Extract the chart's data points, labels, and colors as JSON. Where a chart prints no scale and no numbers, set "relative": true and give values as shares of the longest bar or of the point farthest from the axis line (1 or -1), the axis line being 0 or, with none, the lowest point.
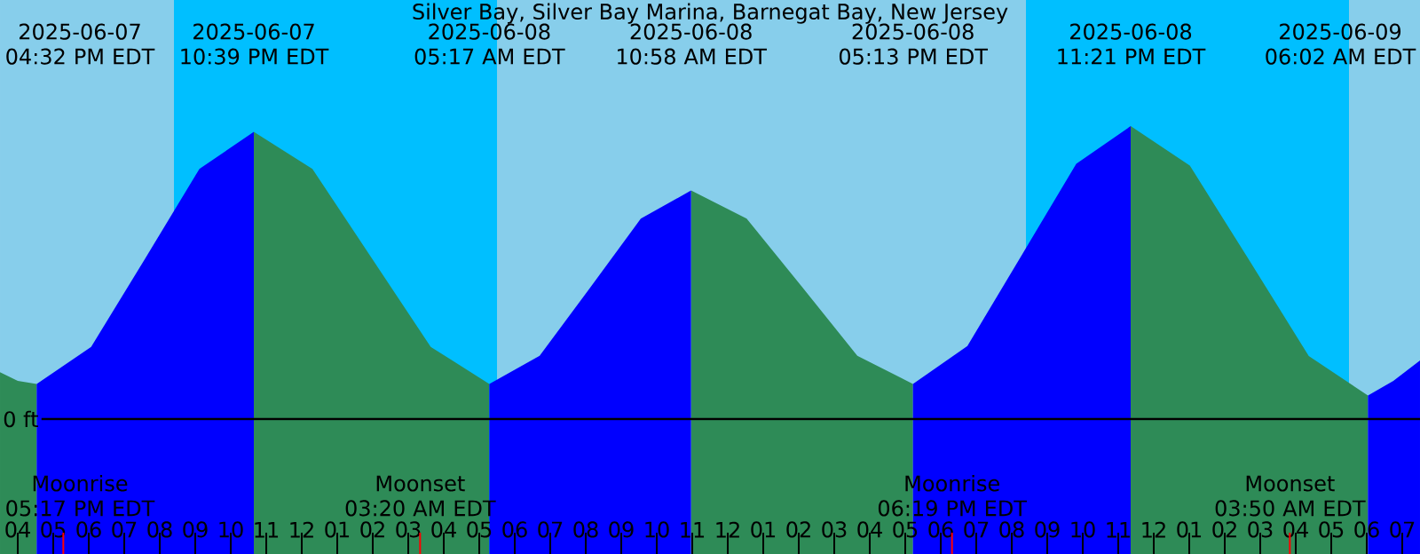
{
  "chart_data": {
    "type": "area",
    "relative": true,
    "title": "Silver Bay, Silver Bay Marina, Barnegat Bay, New Jersey",
    "x": [
      "2025-06-07T15:30",
      "2025-06-07T16:00",
      "2025-06-07T16:32",
      "2025-06-07T18:04",
      "2025-06-07T19:36",
      "2025-06-07T21:07",
      "2025-06-07T22:39",
      "2025-06-08T00:18",
      "2025-06-08T01:58",
      "2025-06-08T03:38",
      "2025-06-08T05:17",
      "2025-06-08T06:42",
      "2025-06-08T08:08",
      "2025-06-08T09:33",
      "2025-06-08T10:58",
      "2025-06-08T12:32",
      "2025-06-08T14:06",
      "2025-06-08T15:39",
      "2025-06-08T17:13",
      "2025-06-08T18:45",
      "2025-06-08T20:17",
      "2025-06-08T21:49",
      "2025-06-08T23:21",
      "2025-06-09T01:01",
      "2025-06-09T02:42",
      "2025-06-09T04:22",
      "2025-06-09T06:02",
      "2025-06-09T06:45",
      "2025-06-09T07:30"
    ],
    "series": [
      {
        "color": "#2e8b57",
        "values": [
          0.16,
          0.13,
          0.12,
          null,
          null,
          null,
          0.98,
          0.854,
          0.55,
          0.246,
          0.12,
          null,
          null,
          null,
          0.78,
          0.684,
          0.45,
          0.216,
          0.12,
          null,
          null,
          null,
          1.0,
          0.865,
          0.54,
          0.215,
          0.08,
          null,
          null
        ]
      },
      {
        "color": "#0000ff",
        "values": [
          null,
          null,
          0.12,
          0.246,
          0.55,
          0.854,
          0.98,
          null,
          null,
          null,
          0.12,
          0.216,
          0.45,
          0.684,
          0.78,
          null,
          null,
          null,
          0.12,
          0.249,
          0.56,
          0.871,
          1.0,
          null,
          null,
          null,
          0.08,
          0.13,
          0.2
        ]
      }
    ],
    "xlim": [
      "2025-06-07T15:30",
      "2025-06-09T07:30"
    ],
    "xticks": [
      {
        "value": "2025-06-07T16:00",
        "label": "04"
      },
      {
        "value": "2025-06-07T17:00",
        "label": "05"
      },
      {
        "value": "2025-06-07T18:00",
        "label": "06"
      },
      {
        "value": "2025-06-07T19:00",
        "label": "07"
      },
      {
        "value": "2025-06-07T20:00",
        "label": "08"
      },
      {
        "value": "2025-06-07T21:00",
        "label": "09"
      },
      {
        "value": "2025-06-07T22:00",
        "label": "10"
      },
      {
        "value": "2025-06-07T23:00",
        "label": "11"
      },
      {
        "value": "2025-06-08T00:00",
        "label": "12"
      },
      {
        "value": "2025-06-08T01:00",
        "label": "01"
      },
      {
        "value": "2025-06-08T02:00",
        "label": "02"
      },
      {
        "value": "2025-06-08T03:00",
        "label": "03"
      },
      {
        "value": "2025-06-08T04:00",
        "label": "04"
      },
      {
        "value": "2025-06-08T05:00",
        "label": "05"
      },
      {
        "value": "2025-06-08T06:00",
        "label": "06"
      },
      {
        "value": "2025-06-08T07:00",
        "label": "07"
      },
      {
        "value": "2025-06-08T08:00",
        "label": "08"
      },
      {
        "value": "2025-06-08T09:00",
        "label": "09"
      },
      {
        "value": "2025-06-08T10:00",
        "label": "10"
      },
      {
        "value": "2025-06-08T11:00",
        "label": "11"
      },
      {
        "value": "2025-06-08T12:00",
        "label": "12"
      },
      {
        "value": "2025-06-08T13:00",
        "label": "01"
      },
      {
        "value": "2025-06-08T14:00",
        "label": "02"
      },
      {
        "value": "2025-06-08T15:00",
        "label": "03"
      },
      {
        "value": "2025-06-08T16:00",
        "label": "04"
      },
      {
        "value": "2025-06-08T17:00",
        "label": "05"
      },
      {
        "value": "2025-06-08T18:00",
        "label": "06"
      },
      {
        "value": "2025-06-08T19:00",
        "label": "07"
      },
      {
        "value": "2025-06-08T20:00",
        "label": "08"
      },
      {
        "value": "2025-06-08T21:00",
        "label": "09"
      },
      {
        "value": "2025-06-08T22:00",
        "label": "10"
      },
      {
        "value": "2025-06-08T23:00",
        "label": "11"
      },
      {
        "value": "2025-06-09T00:00",
        "label": "12"
      },
      {
        "value": "2025-06-09T01:00",
        "label": "01"
      },
      {
        "value": "2025-06-09T02:00",
        "label": "02"
      },
      {
        "value": "2025-06-09T03:00",
        "label": "03"
      },
      {
        "value": "2025-06-09T04:00",
        "label": "04"
      },
      {
        "value": "2025-06-09T05:00",
        "label": "05"
      },
      {
        "value": "2025-06-09T06:00",
        "label": "06"
      },
      {
        "value": "2025-06-09T07:00",
        "label": "07"
      }
    ],
    "bands": [
      {
        "axis": "x",
        "from": "2025-06-07T20:24",
        "to": "2025-06-08T05:30",
        "color": "#00bfff"
      },
      {
        "axis": "x",
        "from": "2025-06-08T20:24",
        "to": "2025-06-09T05:30",
        "color": "#00bfff"
      }
    ],
    "ref_lines": [
      {
        "axis": "y",
        "value": 0,
        "label": "0 ft",
        "color": "#000000"
      },
      {
        "axis": "x",
        "value": "2025-06-07T17:17",
        "label": "Moonrise 05:17 PM EDT",
        "color": "#ff0000"
      },
      {
        "axis": "x",
        "value": "2025-06-08T03:20",
        "label": "Moonset 03:20 AM EDT",
        "color": "#ff0000"
      },
      {
        "axis": "x",
        "value": "2025-06-08T18:19",
        "label": "Moonrise 06:19 PM EDT",
        "color": "#ff0000"
      },
      {
        "axis": "x",
        "value": "2025-06-09T03:50",
        "label": "Moonset 03:50 AM EDT",
        "color": "#ff0000"
      }
    ],
    "annotations": [
      "2025-06-07 04:32 PM EDT",
      "2025-06-07 10:39 PM EDT",
      "2025-06-08 05:17 AM EDT",
      "2025-06-08 10:58 AM EDT",
      "2025-06-08 05:13 PM EDT",
      "2025-06-08 11:21 PM EDT",
      "2025-06-09 06:02 AM EDT"
    ]
  }
}
